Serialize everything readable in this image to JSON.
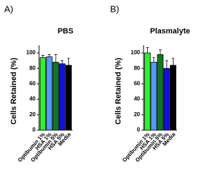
{
  "chart_data": [
    {
      "type": "bar",
      "panel": "A)",
      "title": "PBS",
      "y_label": "Cells Retained (%)",
      "categories": [
        "Optibumin 1%",
        "HSA 1%",
        "Optibumin 5%",
        "HSA 5%",
        "Media"
      ],
      "values": [
        94,
        95,
        88,
        86,
        84
      ],
      "errors": [
        3,
        3,
        10,
        4,
        9
      ],
      "colors": [
        "#33ee33",
        "#5599ff",
        "#117722",
        "#1111dd",
        "#000000"
      ],
      "ylim": [
        0,
        110
      ],
      "yticks": [
        0,
        20,
        40,
        60,
        80,
        100
      ]
    },
    {
      "type": "bar",
      "panel": "B)",
      "title": "Plasmalyte",
      "y_label": "Cells Retained (%)",
      "categories": [
        "Optibumin 1%",
        "HSA 1%",
        "Optibumin 5%",
        "HSA 5%",
        "Media"
      ],
      "values": [
        100,
        88,
        98,
        80,
        84
      ],
      "errors": [
        7,
        6,
        6,
        10,
        9
      ],
      "colors": [
        "#33ee33",
        "#5599ff",
        "#117722",
        "#1111dd",
        "#000000"
      ],
      "ylim": [
        0,
        110
      ],
      "yticks": [
        0,
        20,
        40,
        60,
        80,
        100
      ]
    }
  ]
}
